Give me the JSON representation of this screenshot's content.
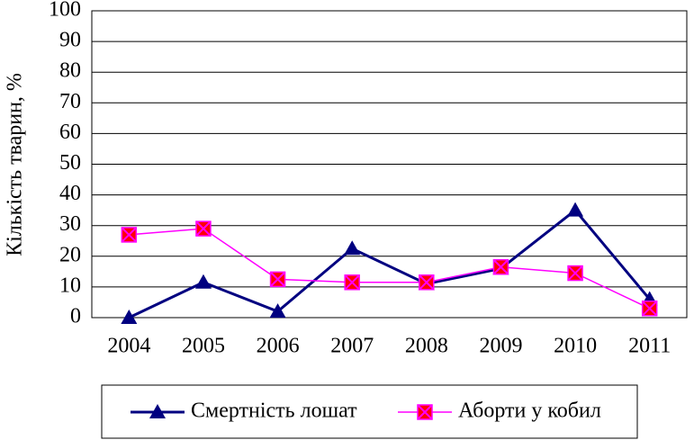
{
  "chart_data": {
    "type": "line",
    "y_label": "Кількість тварин, %",
    "categories": [
      "2004",
      "2005",
      "2006",
      "2007",
      "2008",
      "2009",
      "2010",
      "2011"
    ],
    "series": [
      {
        "name": "Смертність лошат",
        "color": "#000080",
        "marker": "triangle",
        "marker_color": "#000080",
        "values": [
          0,
          11.5,
          2,
          22.5,
          11,
          16,
          35,
          6
        ]
      },
      {
        "name": "Аборти у кобил",
        "color": "#ff00ff",
        "marker": "square",
        "marker_color": "#ff0000",
        "values": [
          27,
          29,
          12.5,
          11.5,
          11.5,
          16.5,
          14.5,
          3
        ]
      }
    ],
    "ylim": [
      0,
      100
    ],
    "yticks": [
      0,
      10,
      20,
      30,
      40,
      50,
      60,
      70,
      80,
      90,
      100
    ],
    "grid": true
  }
}
